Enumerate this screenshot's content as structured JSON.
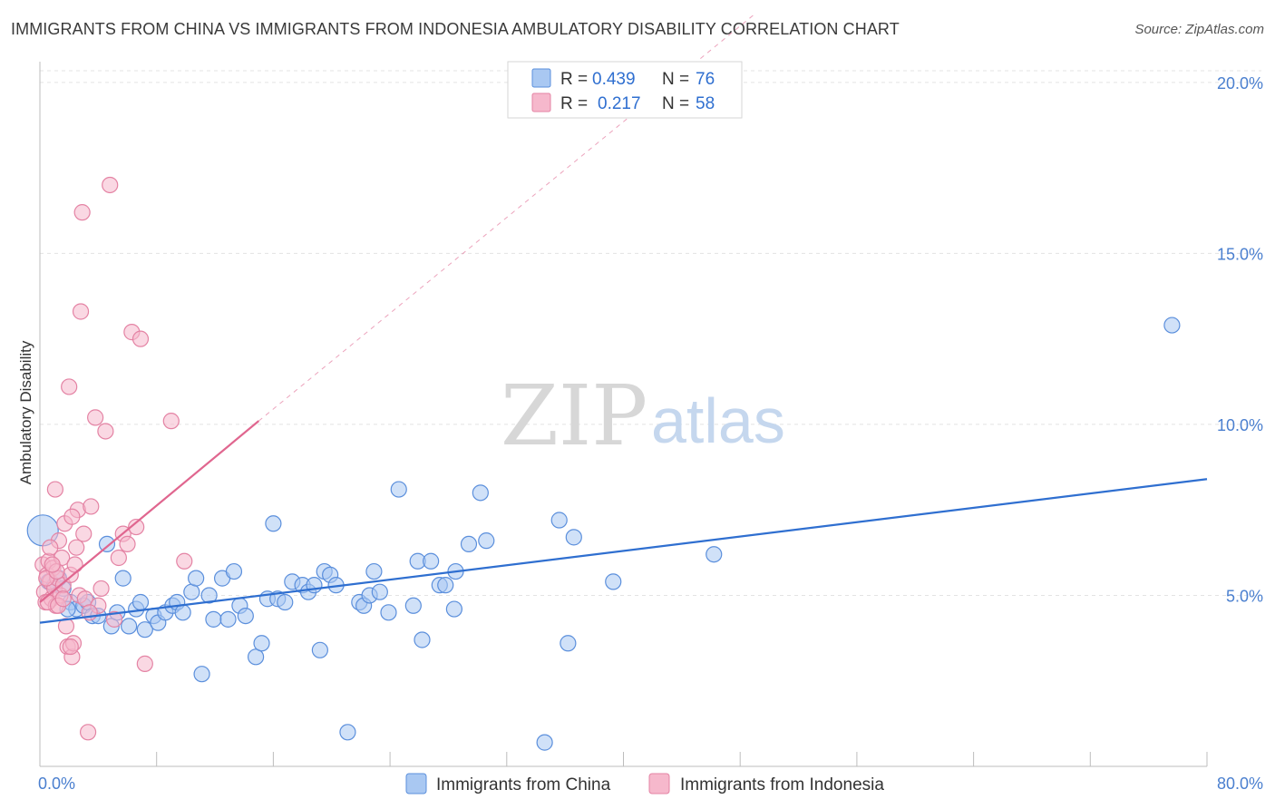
{
  "header": {
    "title": "IMMIGRANTS FROM CHINA VS IMMIGRANTS FROM INDONESIA AMBULATORY DISABILITY CORRELATION CHART",
    "source": "Source: ZipAtlas.com"
  },
  "watermark": {
    "zip": "ZIP",
    "atlas": "atlas"
  },
  "legend": {
    "r_label": "R =",
    "n_label": "N =",
    "rows": [
      {
        "r": "0.439",
        "n": "76"
      },
      {
        "r": "0.217",
        "n": "58"
      }
    ]
  },
  "colors": {
    "china_fill": "#a9c8f2",
    "china_stroke": "#5b8fdc",
    "china_line": "#2f6fd0",
    "indonesia_fill": "#f6b8cc",
    "indonesia_stroke": "#e483a4",
    "indonesia_line": "#e0668f",
    "grid": "#e3e3e3",
    "axis_text": "#4a7fcf"
  },
  "chart_data": {
    "type": "scatter",
    "title": "IMMIGRANTS FROM CHINA VS IMMIGRANTS FROM INDONESIA AMBULATORY DISABILITY CORRELATION CHART",
    "ylabel": "Ambulatory Disability",
    "xlabel": "",
    "xlim": [
      0,
      80
    ],
    "ylim": [
      0,
      20.5
    ],
    "x_tick_labels": [
      "0.0%",
      "80.0%"
    ],
    "y_ticks": [
      5,
      10,
      15,
      20
    ],
    "y_tick_labels": [
      "5.0%",
      "10.0%",
      "15.0%",
      "20.0%"
    ],
    "grid": "horizontal dashed",
    "legend_placement": "top-center",
    "series": [
      {
        "name": "Immigrants from China",
        "r": 0.439,
        "n": 76,
        "trend": {
          "x": [
            0,
            80
          ],
          "y": [
            4.2,
            8.4
          ],
          "style": "solid"
        },
        "points": [
          [
            0.2,
            6.9
          ],
          [
            0.6,
            5.4
          ],
          [
            1.0,
            5.3
          ],
          [
            1.3,
            5.5
          ],
          [
            1.6,
            5.2
          ],
          [
            2.1,
            4.8
          ],
          [
            2.5,
            4.6
          ],
          [
            3.0,
            4.7
          ],
          [
            3.3,
            4.8
          ],
          [
            3.6,
            4.4
          ],
          [
            4.0,
            4.4
          ],
          [
            4.6,
            6.5
          ],
          [
            4.9,
            4.1
          ],
          [
            5.3,
            4.5
          ],
          [
            5.7,
            5.5
          ],
          [
            6.1,
            4.1
          ],
          [
            6.6,
            4.6
          ],
          [
            6.9,
            4.8
          ],
          [
            7.2,
            4.0
          ],
          [
            7.8,
            4.4
          ],
          [
            8.1,
            4.2
          ],
          [
            8.6,
            4.5
          ],
          [
            9.1,
            4.7
          ],
          [
            9.4,
            4.8
          ],
          [
            9.8,
            4.5
          ],
          [
            10.4,
            5.1
          ],
          [
            10.7,
            5.5
          ],
          [
            11.1,
            2.7
          ],
          [
            11.6,
            5.0
          ],
          [
            11.9,
            4.3
          ],
          [
            12.5,
            5.5
          ],
          [
            12.9,
            4.3
          ],
          [
            13.3,
            5.7
          ],
          [
            13.7,
            4.7
          ],
          [
            14.1,
            4.4
          ],
          [
            14.8,
            3.2
          ],
          [
            15.2,
            3.6
          ],
          [
            15.6,
            4.9
          ],
          [
            16.0,
            7.1
          ],
          [
            16.3,
            4.9
          ],
          [
            16.8,
            4.8
          ],
          [
            17.3,
            5.4
          ],
          [
            18.0,
            5.3
          ],
          [
            18.4,
            5.1
          ],
          [
            18.8,
            5.3
          ],
          [
            19.2,
            3.4
          ],
          [
            19.5,
            5.7
          ],
          [
            19.9,
            5.6
          ],
          [
            20.3,
            5.3
          ],
          [
            21.1,
            1.0
          ],
          [
            21.9,
            4.8
          ],
          [
            22.2,
            4.7
          ],
          [
            22.6,
            5.0
          ],
          [
            22.9,
            5.7
          ],
          [
            23.3,
            5.1
          ],
          [
            23.9,
            4.5
          ],
          [
            24.6,
            8.1
          ],
          [
            25.6,
            4.7
          ],
          [
            25.9,
            6.0
          ],
          [
            26.2,
            3.7
          ],
          [
            26.8,
            6.0
          ],
          [
            27.4,
            5.3
          ],
          [
            27.8,
            5.3
          ],
          [
            28.4,
            4.6
          ],
          [
            28.5,
            5.7
          ],
          [
            29.4,
            6.5
          ],
          [
            30.2,
            8.0
          ],
          [
            30.6,
            6.6
          ],
          [
            34.6,
            0.7
          ],
          [
            35.6,
            7.2
          ],
          [
            36.2,
            3.6
          ],
          [
            36.6,
            6.7
          ],
          [
            39.3,
            5.4
          ],
          [
            46.2,
            6.2
          ],
          [
            77.6,
            12.9
          ],
          [
            1.9,
            4.6
          ]
        ]
      },
      {
        "name": "Immigrants from Indonesia",
        "r": 0.217,
        "n": 58,
        "trend": {
          "x": [
            0,
            15
          ],
          "y": [
            4.8,
            10.1
          ],
          "style": "solid",
          "dashed_extension_to": [
            49,
            22.0
          ]
        },
        "points": [
          [
            0.2,
            5.9
          ],
          [
            0.3,
            5.1
          ],
          [
            0.4,
            4.8
          ],
          [
            0.5,
            5.6
          ],
          [
            0.6,
            6.0
          ],
          [
            0.7,
            5.4
          ],
          [
            0.8,
            4.9
          ],
          [
            0.9,
            5.8
          ],
          [
            1.0,
            5.2
          ],
          [
            1.1,
            4.7
          ],
          [
            1.2,
            5.5
          ],
          [
            1.3,
            6.6
          ],
          [
            1.4,
            5.0
          ],
          [
            1.5,
            6.1
          ],
          [
            1.6,
            5.3
          ],
          [
            1.7,
            7.1
          ],
          [
            1.8,
            4.1
          ],
          [
            1.9,
            3.5
          ],
          [
            2.0,
            11.1
          ],
          [
            2.1,
            5.6
          ],
          [
            2.2,
            3.2
          ],
          [
            2.3,
            3.6
          ],
          [
            2.4,
            5.9
          ],
          [
            2.5,
            6.4
          ],
          [
            2.6,
            7.5
          ],
          [
            2.7,
            5.0
          ],
          [
            2.8,
            13.3
          ],
          [
            2.9,
            16.2
          ],
          [
            3.0,
            6.8
          ],
          [
            3.1,
            4.9
          ],
          [
            3.3,
            1.0
          ],
          [
            3.5,
            7.6
          ],
          [
            3.8,
            10.2
          ],
          [
            4.0,
            4.7
          ],
          [
            4.2,
            5.2
          ],
          [
            4.5,
            9.8
          ],
          [
            4.8,
            17.0
          ],
          [
            5.1,
            4.3
          ],
          [
            5.4,
            6.1
          ],
          [
            5.7,
            6.8
          ],
          [
            6.0,
            6.5
          ],
          [
            6.3,
            12.7
          ],
          [
            6.6,
            7.0
          ],
          [
            6.9,
            12.5
          ],
          [
            7.2,
            3.0
          ],
          [
            9.0,
            10.1
          ],
          [
            9.9,
            6.0
          ],
          [
            1.05,
            8.1
          ],
          [
            0.45,
            5.5
          ],
          [
            0.55,
            4.8
          ],
          [
            1.25,
            4.7
          ],
          [
            1.15,
            5.7
          ],
          [
            0.85,
            5.9
          ],
          [
            2.2,
            7.3
          ],
          [
            1.6,
            4.9
          ],
          [
            0.7,
            6.4
          ],
          [
            2.1,
            3.5
          ],
          [
            3.4,
            4.5
          ]
        ]
      }
    ]
  },
  "bottom_legend": [
    {
      "label": "Immigrants from China"
    },
    {
      "label": "Immigrants from Indonesia"
    }
  ]
}
